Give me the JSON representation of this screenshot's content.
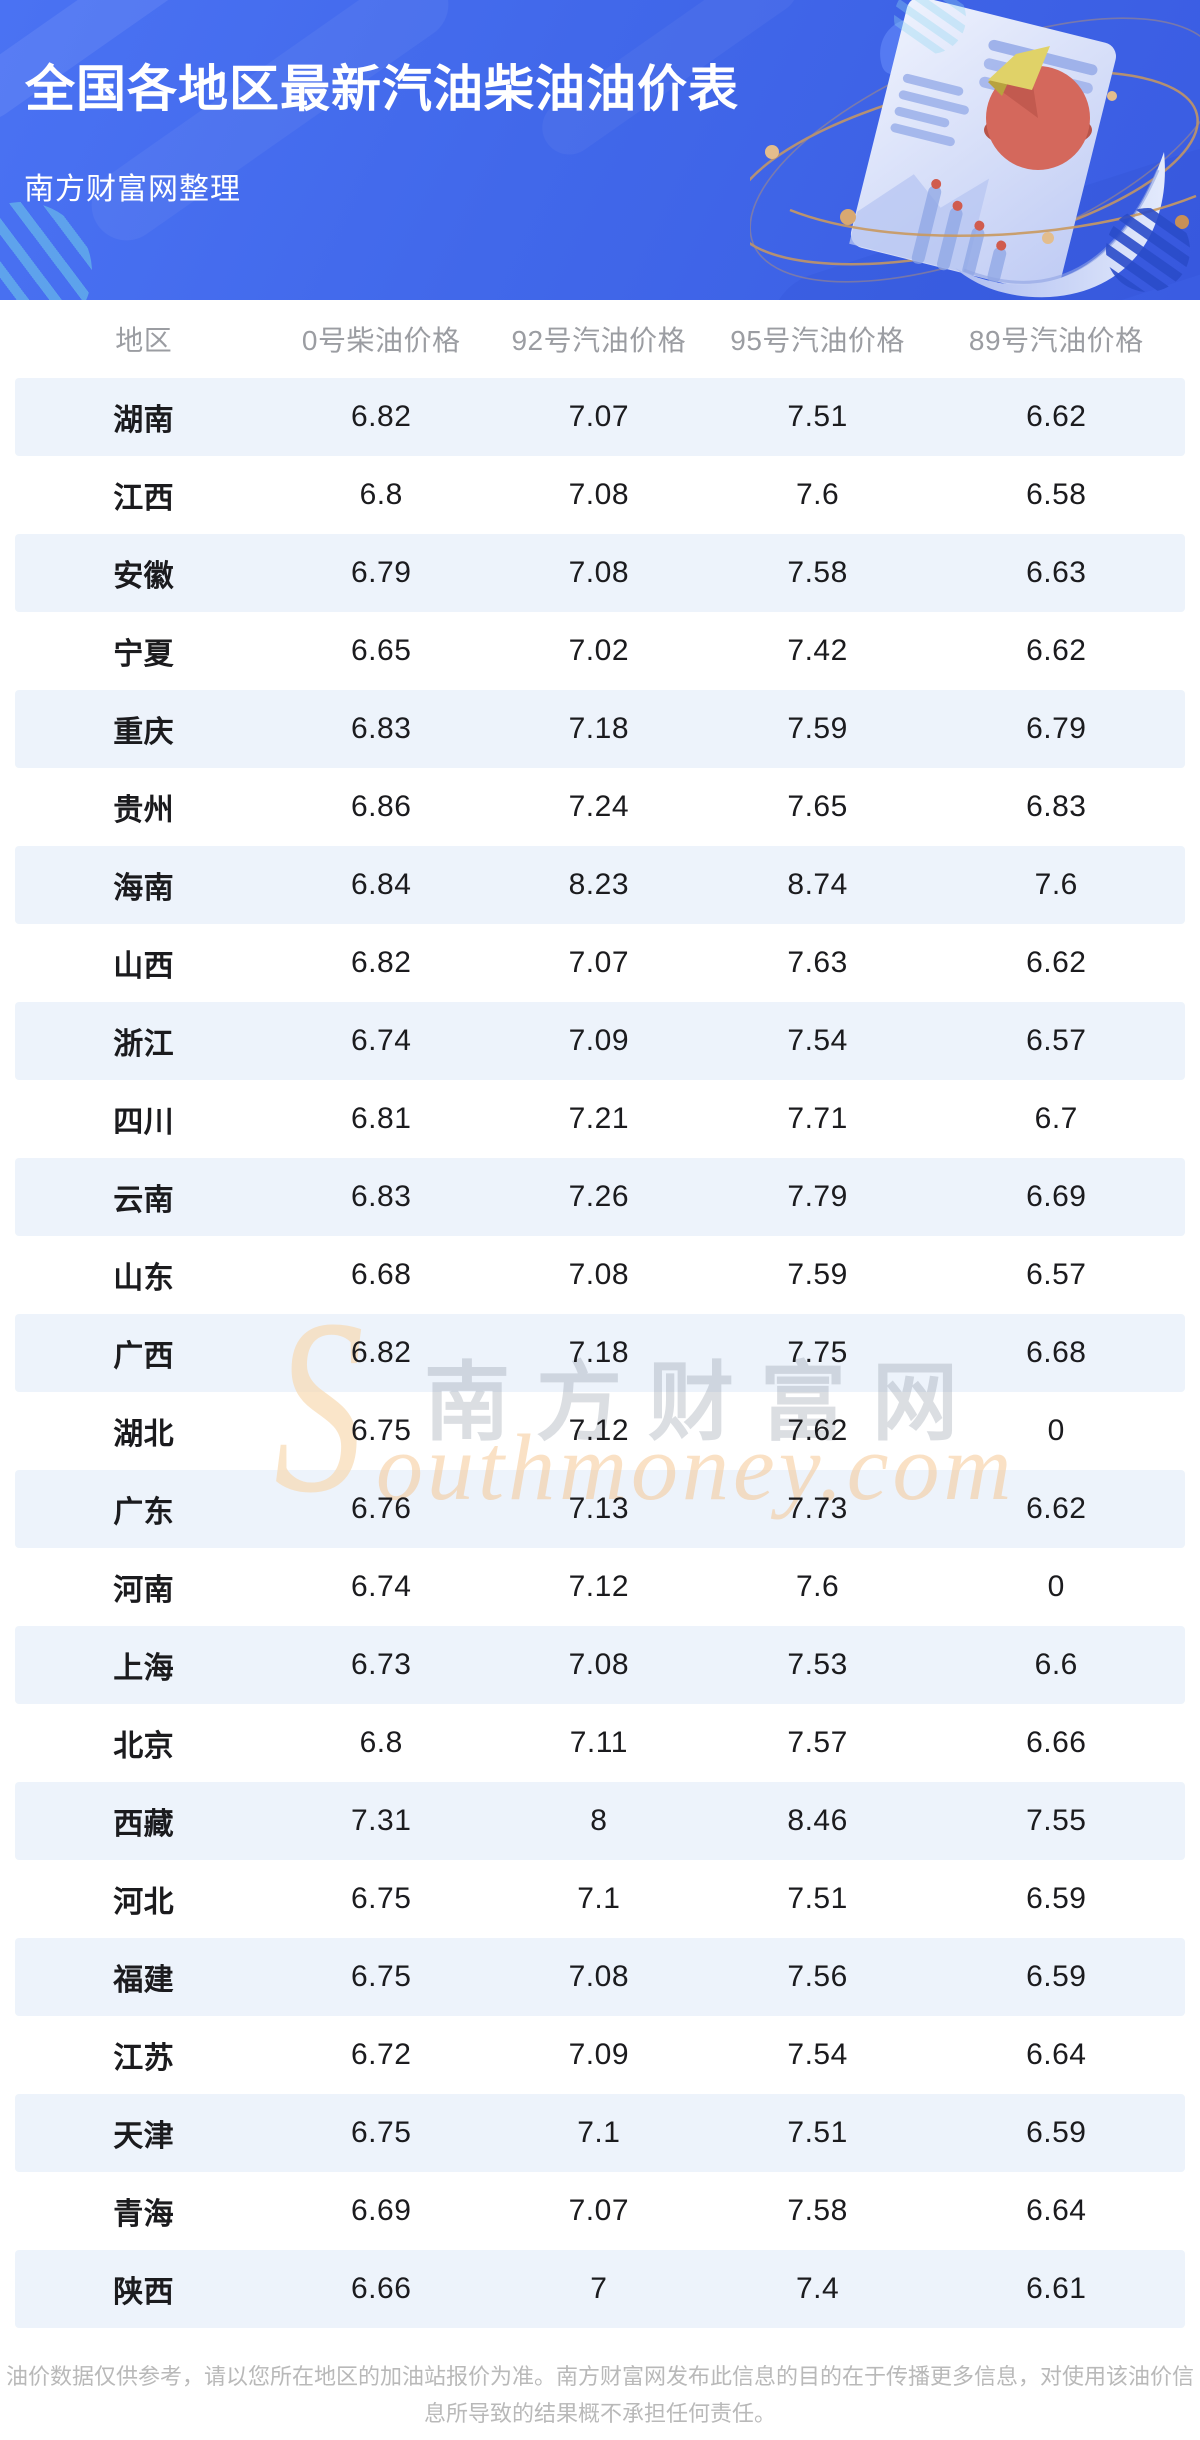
{
  "banner": {
    "title": "全国各地区最新汽油柴油油价表",
    "subtitle": "南方财富网整理"
  },
  "table": {
    "columns": [
      "地区",
      "0号柴油价格",
      "92号汽油价格",
      "95号汽油价格",
      "89号汽油价格"
    ],
    "rows": [
      {
        "region": "湖南",
        "prices": [
          "6.82",
          "7.07",
          "7.51",
          "6.62"
        ]
      },
      {
        "region": "江西",
        "prices": [
          "6.8",
          "7.08",
          "7.6",
          "6.58"
        ]
      },
      {
        "region": "安徽",
        "prices": [
          "6.79",
          "7.08",
          "7.58",
          "6.63"
        ]
      },
      {
        "region": "宁夏",
        "prices": [
          "6.65",
          "7.02",
          "7.42",
          "6.62"
        ]
      },
      {
        "region": "重庆",
        "prices": [
          "6.83",
          "7.18",
          "7.59",
          "6.79"
        ]
      },
      {
        "region": "贵州",
        "prices": [
          "6.86",
          "7.24",
          "7.65",
          "6.83"
        ]
      },
      {
        "region": "海南",
        "prices": [
          "6.84",
          "8.23",
          "8.74",
          "7.6"
        ]
      },
      {
        "region": "山西",
        "prices": [
          "6.82",
          "7.07",
          "7.63",
          "6.62"
        ]
      },
      {
        "region": "浙江",
        "prices": [
          "6.74",
          "7.09",
          "7.54",
          "6.57"
        ]
      },
      {
        "region": "四川",
        "prices": [
          "6.81",
          "7.21",
          "7.71",
          "6.7"
        ]
      },
      {
        "region": "云南",
        "prices": [
          "6.83",
          "7.26",
          "7.79",
          "6.69"
        ]
      },
      {
        "region": "山东",
        "prices": [
          "6.68",
          "7.08",
          "7.59",
          "6.57"
        ]
      },
      {
        "region": "广西",
        "prices": [
          "6.82",
          "7.18",
          "7.75",
          "6.68"
        ]
      },
      {
        "region": "湖北",
        "prices": [
          "6.75",
          "7.12",
          "7.62",
          "0"
        ]
      },
      {
        "region": "广东",
        "prices": [
          "6.76",
          "7.13",
          "7.73",
          "6.62"
        ]
      },
      {
        "region": "河南",
        "prices": [
          "6.74",
          "7.12",
          "7.6",
          "0"
        ]
      },
      {
        "region": "上海",
        "prices": [
          "6.73",
          "7.08",
          "7.53",
          "6.6"
        ]
      },
      {
        "region": "北京",
        "prices": [
          "6.8",
          "7.11",
          "7.57",
          "6.66"
        ]
      },
      {
        "region": "西藏",
        "prices": [
          "7.31",
          "8",
          "8.46",
          "7.55"
        ]
      },
      {
        "region": "河北",
        "prices": [
          "6.75",
          "7.1",
          "7.51",
          "6.59"
        ]
      },
      {
        "region": "福建",
        "prices": [
          "6.75",
          "7.08",
          "7.56",
          "6.59"
        ]
      },
      {
        "region": "江苏",
        "prices": [
          "6.72",
          "7.09",
          "7.54",
          "6.64"
        ]
      },
      {
        "region": "天津",
        "prices": [
          "6.75",
          "7.1",
          "7.51",
          "6.59"
        ]
      },
      {
        "region": "青海",
        "prices": [
          "6.69",
          "7.07",
          "7.58",
          "6.64"
        ]
      },
      {
        "region": "陕西",
        "prices": [
          "6.66",
          "7",
          "7.4",
          "6.61"
        ]
      }
    ]
  },
  "watermark": {
    "initial": "S",
    "cn": "南方财富网",
    "en": "outhmoney.com"
  },
  "footer": {
    "lines": [
      "油价数据仅供参考，请以您所在地区的加油站报价为准。南方财富网发布此信息的目的在于传播更多信息，对使用该油价信",
      "息所导致的结果概不承担任何责任。"
    ]
  },
  "colors": {
    "banner_blue": "#4168ea",
    "row_alt_blue": "#edf3fb",
    "header_text_gray": "#9b9da2",
    "body_text": "#1b1b1e",
    "footer_gray": "#b9b9b9",
    "watermark_orange": "#f6c48c",
    "watermark_gray": "#7d8796",
    "pie_red": "#d4685c",
    "pie_yellow": "#e0d268"
  }
}
